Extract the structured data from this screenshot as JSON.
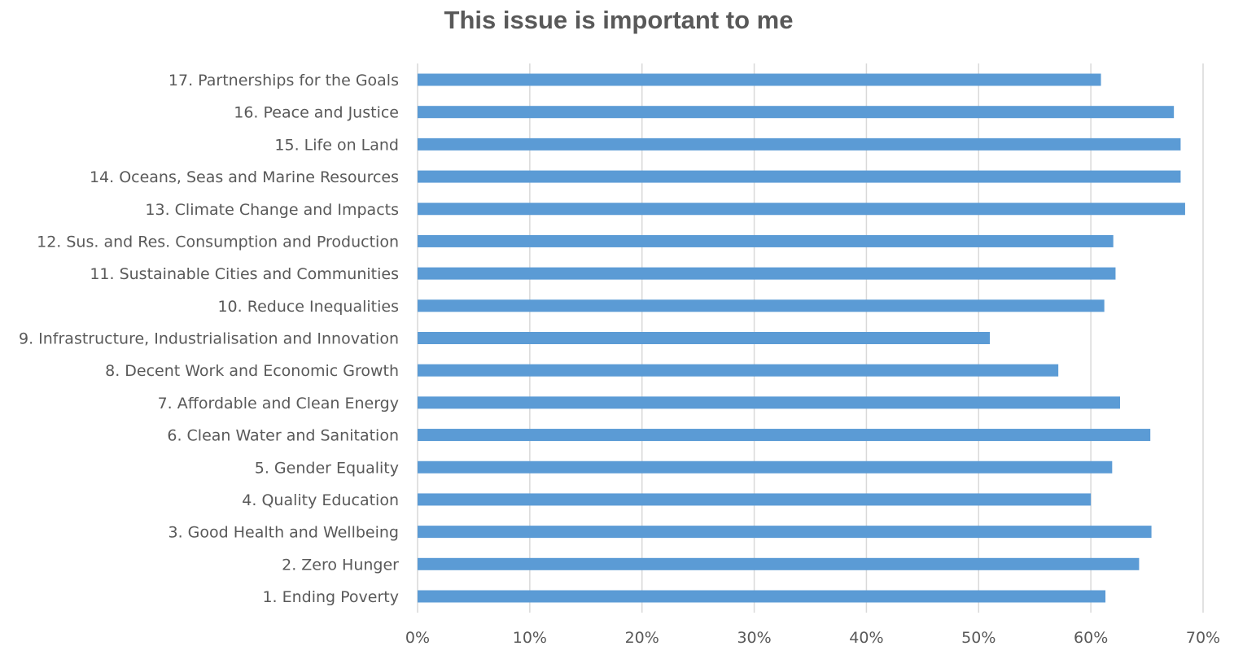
{
  "chart_data": {
    "type": "bar",
    "orientation": "horizontal",
    "title": "This issue is important to me",
    "xlabel": "",
    "ylabel": "",
    "categories": [
      "1. Ending Poverty",
      "2. Zero Hunger",
      "3. Good Health and Wellbeing",
      "4. Quality Education",
      "5. Gender Equality",
      "6. Clean Water and Sanitation",
      "7. Affordable and Clean Energy",
      "8. Decent Work and Economic Growth",
      "9. Infrastructure, Industrialisation and Innovation",
      "10. Reduce Inequalities",
      "11. Sustainable Cities and Communities",
      "12. Sus. and Res. Consumption and Production",
      "13. Climate Change and Impacts",
      "14. Oceans, Seas and Marine Resources",
      "15. Life on Land",
      "16. Peace and Justice",
      "17. Partnerships for the Goals"
    ],
    "values": [
      0.613,
      0.643,
      0.654,
      0.6,
      0.619,
      0.653,
      0.626,
      0.571,
      0.51,
      0.612,
      0.622,
      0.62,
      0.684,
      0.68,
      0.68,
      0.674,
      0.609
    ],
    "xlim": [
      0,
      0.7
    ],
    "xticks": [
      0,
      0.1,
      0.2,
      0.3,
      0.4,
      0.5,
      0.6,
      0.7
    ],
    "xtick_labels": [
      "0%",
      "10%",
      "20%",
      "30%",
      "40%",
      "50%",
      "60%",
      "70%"
    ],
    "grid": "vertical",
    "legend": "none",
    "colors": {
      "bar": "#5b9bd5",
      "text": "#595959",
      "grid": "#d9d9d9"
    }
  }
}
